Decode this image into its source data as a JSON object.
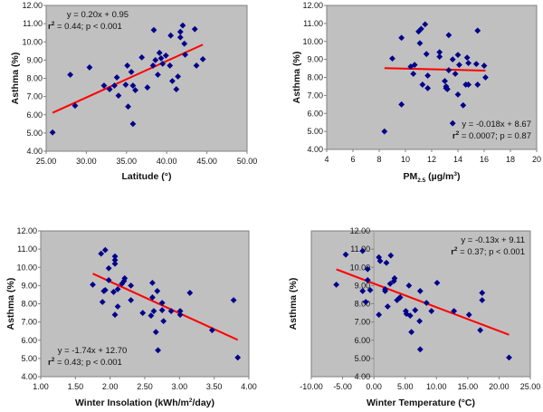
{
  "chart_data": [
    {
      "id": "latitude",
      "type": "scatter",
      "title": "",
      "xlabel": "Latitude (°)",
      "ylabel": "Asthma (%)",
      "xlim": [
        25,
        50
      ],
      "ylim": [
        4,
        12
      ],
      "xticks": [
        "25.00",
        "30.00",
        "35.00",
        "40.00",
        "45.00",
        "50.00"
      ],
      "yticks": [
        "4.00",
        "5.00",
        "6.00",
        "7.00",
        "8.00",
        "9.00",
        "10.00",
        "11.00",
        "12.00"
      ],
      "grid": false,
      "marker_color": "#00008B",
      "trend_color": "#FF0000",
      "trendline": {
        "slope": 0.2,
        "intercept": 0.95,
        "x_range": [
          25.8,
          44.5
        ]
      },
      "annotation": {
        "line1": "y = 0.20x + 0.95",
        "r2_label": "r",
        "r2_sup": "2",
        "line2": " = 0.44; p < 0.001",
        "position": "top-left"
      },
      "points": [
        [
          25.8,
          5.03
        ],
        [
          28.0,
          8.2
        ],
        [
          28.6,
          6.5
        ],
        [
          30.4,
          8.6
        ],
        [
          32.2,
          7.6
        ],
        [
          32.9,
          7.4
        ],
        [
          33.5,
          7.6
        ],
        [
          33.8,
          8.05
        ],
        [
          34.0,
          7.05
        ],
        [
          34.9,
          7.65
        ],
        [
          35.1,
          8.7
        ],
        [
          35.2,
          6.45
        ],
        [
          35.6,
          8.35
        ],
        [
          35.8,
          7.6
        ],
        [
          35.8,
          5.5
        ],
        [
          36.1,
          7.35
        ],
        [
          36.9,
          9.15
        ],
        [
          37.6,
          7.5
        ],
        [
          38.3,
          8.7
        ],
        [
          38.4,
          10.65
        ],
        [
          38.6,
          9.0
        ],
        [
          38.9,
          8.2
        ],
        [
          39.1,
          9.4
        ],
        [
          39.3,
          9.1
        ],
        [
          39.5,
          8.8
        ],
        [
          39.9,
          9.25
        ],
        [
          40.4,
          8.7
        ],
        [
          40.5,
          10.35
        ],
        [
          40.7,
          7.85
        ],
        [
          41.2,
          7.4
        ],
        [
          41.4,
          8.1
        ],
        [
          41.7,
          10.55
        ],
        [
          41.7,
          10.25
        ],
        [
          42.0,
          10.9
        ],
        [
          42.2,
          9.9
        ],
        [
          42.3,
          9.3
        ],
        [
          43.5,
          10.7
        ],
        [
          43.7,
          8.7
        ],
        [
          44.5,
          9.05
        ]
      ]
    },
    {
      "id": "pm25",
      "type": "scatter",
      "title": "",
      "xlabel": "PM",
      "xlabel_sub": "2.5",
      "xlabel_rest": " (µg/m",
      "xlabel_sup": "3",
      "xlabel_end": ")",
      "ylabel": "Asthma (%)",
      "xlim": [
        4,
        20
      ],
      "ylim": [
        4,
        12
      ],
      "xticks": [
        "4",
        "6",
        "8",
        "10",
        "12",
        "14",
        "16",
        "18",
        "20"
      ],
      "yticks": [
        "4.00",
        "5.00",
        "6.00",
        "7.00",
        "8.00",
        "9.00",
        "10.00",
        "11.00",
        "12.00"
      ],
      "grid": false,
      "marker_color": "#00008B",
      "trend_color": "#FF0000",
      "trendline": {
        "slope": -0.018,
        "intercept": 8.67,
        "x_range": [
          8.4,
          16.1
        ]
      },
      "annotation": {
        "line1": "y = -0.018x + 8.67",
        "r2_label": "r",
        "r2_sup": "2",
        "line2": " = 0.0007; p = 0.87",
        "position": "bottom-right"
      },
      "points": [
        [
          8.4,
          5.0
        ],
        [
          9.0,
          9.05
        ],
        [
          9.7,
          10.2
        ],
        [
          9.7,
          6.5
        ],
        [
          10.4,
          8.6
        ],
        [
          10.6,
          8.2
        ],
        [
          10.7,
          8.7
        ],
        [
          11.0,
          10.55
        ],
        [
          11.1,
          9.9
        ],
        [
          11.2,
          10.7
        ],
        [
          11.3,
          7.6
        ],
        [
          11.5,
          10.95
        ],
        [
          11.6,
          9.3
        ],
        [
          11.7,
          8.1
        ],
        [
          11.7,
          7.4
        ],
        [
          12.6,
          9.4
        ],
        [
          12.6,
          9.15
        ],
        [
          13.0,
          7.8
        ],
        [
          13.1,
          7.4
        ],
        [
          13.1,
          7.5
        ],
        [
          13.2,
          7.35
        ],
        [
          13.3,
          10.35
        ],
        [
          13.3,
          8.4
        ],
        [
          13.6,
          9.0
        ],
        [
          13.6,
          5.45
        ],
        [
          13.8,
          8.2
        ],
        [
          14.0,
          9.25
        ],
        [
          14.0,
          7.05
        ],
        [
          14.1,
          8.7
        ],
        [
          14.4,
          6.45
        ],
        [
          14.6,
          7.6
        ],
        [
          14.7,
          9.1
        ],
        [
          14.8,
          8.8
        ],
        [
          14.8,
          7.6
        ],
        [
          15.4,
          8.75
        ],
        [
          15.5,
          7.6
        ],
        [
          15.5,
          10.6
        ],
        [
          16.0,
          8.65
        ],
        [
          16.1,
          8.0
        ]
      ]
    },
    {
      "id": "insolation",
      "type": "scatter",
      "title": "",
      "xlabel": "Winter Insolation (kWh/m",
      "xlabel_sup": "2",
      "xlabel_end": "/day)",
      "ylabel": "Asthma (%)",
      "xlim": [
        1.0,
        4.0
      ],
      "ylim": [
        4,
        12
      ],
      "xticks": [
        "1.00",
        "1.50",
        "2.00",
        "2.50",
        "3.00",
        "3.50",
        "4.00"
      ],
      "yticks": [
        "4.00",
        "5.00",
        "6.00",
        "7.00",
        "8.00",
        "9.00",
        "10.00",
        "11.00",
        "12.00"
      ],
      "grid": false,
      "marker_color": "#00008B",
      "trend_color": "#FF0000",
      "trendline": {
        "slope": -1.74,
        "intercept": 12.7,
        "x_range": [
          1.75,
          3.84
        ]
      },
      "annotation": {
        "line1": "y = -1.74x + 12.70",
        "r2_label": "r",
        "r2_sup": "2",
        "line2": " = 0.43; p < 0.001",
        "position": "bottom-left"
      },
      "points": [
        [
          1.75,
          9.05
        ],
        [
          1.87,
          10.75
        ],
        [
          1.89,
          8.1
        ],
        [
          1.91,
          8.7
        ],
        [
          1.93,
          8.75
        ],
        [
          1.93,
          10.95
        ],
        [
          1.98,
          9.95
        ],
        [
          1.98,
          9.3
        ],
        [
          2.05,
          8.65
        ],
        [
          2.07,
          10.6
        ],
        [
          2.07,
          10.4
        ],
        [
          2.07,
          10.2
        ],
        [
          2.07,
          7.4
        ],
        [
          2.11,
          8.8
        ],
        [
          2.11,
          7.85
        ],
        [
          2.17,
          9.1
        ],
        [
          2.2,
          9.25
        ],
        [
          2.21,
          9.4
        ],
        [
          2.3,
          9.0
        ],
        [
          2.3,
          8.2
        ],
        [
          2.47,
          7.5
        ],
        [
          2.59,
          7.35
        ],
        [
          2.61,
          9.15
        ],
        [
          2.61,
          8.35
        ],
        [
          2.63,
          7.6
        ],
        [
          2.66,
          6.45
        ],
        [
          2.68,
          8.7
        ],
        [
          2.69,
          5.45
        ],
        [
          2.75,
          8.05
        ],
        [
          2.75,
          7.65
        ],
        [
          2.77,
          7.05
        ],
        [
          2.88,
          7.6
        ],
        [
          3.01,
          7.6
        ],
        [
          3.01,
          7.4
        ],
        [
          3.15,
          8.6
        ],
        [
          3.47,
          6.55
        ],
        [
          3.78,
          8.2
        ],
        [
          3.84,
          5.05
        ]
      ]
    },
    {
      "id": "temperature",
      "type": "scatter",
      "title": "",
      "xlabel": "Winter Temperature (°C)",
      "ylabel": "Asthma (%)",
      "xlim": [
        -10,
        25
      ],
      "ylim": [
        4,
        12
      ],
      "xticks": [
        "-10.00",
        "-5.00",
        "0.00",
        "5.00",
        "10.00",
        "15.00",
        "20.00",
        "25.00"
      ],
      "yticks": [
        "4.00",
        "5.00",
        "6.00",
        "7.00",
        "8.00",
        "9.00",
        "10.00",
        "11.00",
        "12.00"
      ],
      "grid": false,
      "marker_color": "#00008B",
      "trend_color": "#FF0000",
      "trendline": {
        "slope": -0.13,
        "intercept": 9.11,
        "x_range": [
          -6.0,
          21.6
        ]
      },
      "annotation": {
        "line1": "y = -0.13x + 9.11",
        "r2_label": "r",
        "r2_sup": "2",
        "line2": " = 0.37; p < 0.001",
        "position": "top-right"
      },
      "points": [
        [
          -6.0,
          9.05
        ],
        [
          -4.5,
          10.7
        ],
        [
          -1.8,
          10.9
        ],
        [
          -1.8,
          8.7
        ],
        [
          -1.3,
          8.1
        ],
        [
          -1.0,
          9.9
        ],
        [
          -1.0,
          9.3
        ],
        [
          -0.6,
          8.75
        ],
        [
          0.8,
          10.55
        ],
        [
          0.8,
          7.4
        ],
        [
          1.0,
          10.35
        ],
        [
          1.8,
          8.7
        ],
        [
          1.8,
          8.8
        ],
        [
          2.0,
          10.25
        ],
        [
          2.2,
          7.85
        ],
        [
          2.6,
          9.1
        ],
        [
          2.7,
          10.65
        ],
        [
          3.2,
          9.25
        ],
        [
          3.3,
          9.4
        ],
        [
          3.7,
          8.2
        ],
        [
          4.0,
          8.3
        ],
        [
          4.2,
          8.35
        ],
        [
          5.1,
          7.6
        ],
        [
          5.2,
          7.45
        ],
        [
          5.6,
          9.0
        ],
        [
          5.8,
          7.35
        ],
        [
          6.0,
          6.45
        ],
        [
          6.6,
          7.65
        ],
        [
          7.3,
          7.05
        ],
        [
          7.4,
          8.7
        ],
        [
          7.4,
          5.5
        ],
        [
          8.4,
          8.05
        ],
        [
          9.2,
          7.6
        ],
        [
          10.1,
          9.15
        ],
        [
          12.8,
          7.6
        ],
        [
          15.2,
          7.4
        ],
        [
          17.0,
          6.55
        ],
        [
          17.3,
          8.6
        ],
        [
          17.3,
          8.2
        ],
        [
          21.6,
          5.05
        ]
      ]
    }
  ]
}
